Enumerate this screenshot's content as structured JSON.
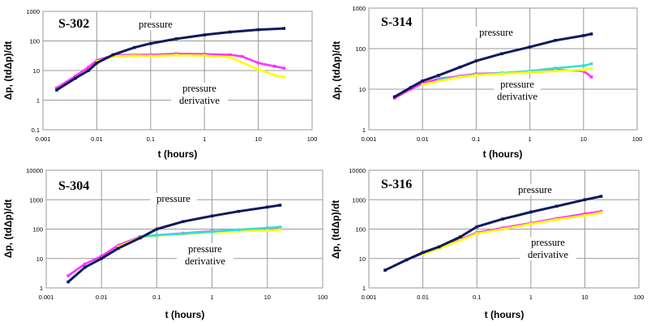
{
  "colors": {
    "pressure": "#0d1a5c",
    "derivative_a": "#ff33ff",
    "derivative_b": "#ffff00",
    "derivative_c": "#33dddd",
    "grid": "#9a9a9a"
  },
  "chart_data": [
    {
      "type": "scatter",
      "title": "S-302",
      "xlabel": "t (hours)",
      "ylabel": "Δp, (tdΔp)/dt",
      "x_scale": "log",
      "y_scale": "log",
      "xlim": [
        0.001,
        100
      ],
      "ylim": [
        0.1,
        1000
      ],
      "x_ticks": [
        "0.001",
        "0.01",
        "0.1",
        "1",
        "10",
        "100"
      ],
      "y_ticks": [
        "0.1",
        "1",
        "10",
        "100",
        "1000"
      ],
      "annotations": [
        "pressure",
        "pressure",
        "derivative"
      ],
      "series": [
        {
          "color": "pressure",
          "points": [
            [
              0.0018,
              2.2
            ],
            [
              0.004,
              5.5
            ],
            [
              0.007,
              10
            ],
            [
              0.01,
              18
            ],
            [
              0.02,
              34
            ],
            [
              0.05,
              60
            ],
            [
              0.1,
              82
            ],
            [
              0.3,
              118
            ],
            [
              1,
              160
            ],
            [
              3,
              200
            ],
            [
              10,
              240
            ],
            [
              30,
              265
            ]
          ]
        },
        {
          "color": "derivative_a",
          "points": [
            [
              0.0018,
              2.6
            ],
            [
              0.004,
              6.5
            ],
            [
              0.007,
              13
            ],
            [
              0.01,
              22
            ],
            [
              0.02,
              33
            ],
            [
              0.05,
              34
            ],
            [
              0.1,
              34
            ],
            [
              0.3,
              37
            ],
            [
              1,
              36
            ],
            [
              3,
              34
            ],
            [
              5,
              30
            ],
            [
              10,
              18
            ],
            [
              20,
              14
            ],
            [
              30,
              12
            ]
          ]
        },
        {
          "color": "derivative_b",
          "points": [
            [
              0.01,
              20
            ],
            [
              0.02,
              30
            ],
            [
              0.05,
              32
            ],
            [
              0.1,
              31
            ],
            [
              0.3,
              33
            ],
            [
              1,
              32
            ],
            [
              3,
              28
            ],
            [
              10,
              11
            ],
            [
              20,
              7
            ],
            [
              30,
              6
            ]
          ]
        }
      ]
    },
    {
      "type": "scatter",
      "title": "S-314",
      "xlabel": "t (hours)",
      "ylabel": "Δp, (tdΔp)/dt",
      "x_scale": "log",
      "y_scale": "log",
      "xlim": [
        0.001,
        100
      ],
      "ylim": [
        1,
        1000
      ],
      "x_ticks": [
        "0.001",
        "0.01",
        "0.1",
        "1",
        "10",
        "100"
      ],
      "y_ticks": [
        "1",
        "10",
        "100",
        "1000"
      ],
      "annotations": [
        "pressure",
        "pressure",
        "derivative"
      ],
      "series": [
        {
          "color": "pressure",
          "points": [
            [
              0.003,
              6.5
            ],
            [
              0.006,
              11
            ],
            [
              0.01,
              16
            ],
            [
              0.02,
              22
            ],
            [
              0.05,
              35
            ],
            [
              0.1,
              50
            ],
            [
              0.3,
              75
            ],
            [
              1,
              110
            ],
            [
              3,
              160
            ],
            [
              10,
              210
            ],
            [
              14,
              230
            ]
          ]
        },
        {
          "color": "derivative_a",
          "points": [
            [
              0.003,
              6
            ],
            [
              0.006,
              10
            ],
            [
              0.01,
              14
            ],
            [
              0.02,
              18
            ],
            [
              0.05,
              21
            ],
            [
              0.1,
              24
            ],
            [
              0.3,
              25
            ],
            [
              1,
              27
            ],
            [
              3,
              30
            ],
            [
              10,
              28
            ],
            [
              14,
              20
            ]
          ]
        },
        {
          "color": "derivative_c",
          "points": [
            [
              0.02,
              17
            ],
            [
              0.05,
              20
            ],
            [
              0.1,
              23
            ],
            [
              0.3,
              25
            ],
            [
              1,
              28
            ],
            [
              3,
              33
            ],
            [
              10,
              38
            ],
            [
              14,
              42
            ]
          ]
        },
        {
          "color": "derivative_b",
          "points": [
            [
              0.01,
              13
            ],
            [
              0.05,
              20
            ],
            [
              0.1,
              22
            ],
            [
              0.3,
              24
            ],
            [
              1,
              26
            ],
            [
              3,
              28
            ],
            [
              10,
              30
            ],
            [
              14,
              32
            ]
          ]
        }
      ]
    },
    {
      "type": "scatter",
      "title": "S-304",
      "xlabel": "t (hours)",
      "ylabel": "Δp, (tdΔp)/dt",
      "x_scale": "log",
      "y_scale": "log",
      "xlim": [
        0.001,
        100
      ],
      "ylim": [
        1,
        10000
      ],
      "x_ticks": [
        "0.001",
        "0.01",
        "0.1",
        "1",
        "10",
        "100"
      ],
      "y_ticks": [
        "1",
        "10",
        "100",
        "1000",
        "10000"
      ],
      "annotations": [
        "pressure",
        "pressure",
        "derivative"
      ],
      "series": [
        {
          "color": "pressure",
          "points": [
            [
              0.0025,
              1.6
            ],
            [
              0.005,
              5
            ],
            [
              0.01,
              10
            ],
            [
              0.02,
              22
            ],
            [
              0.05,
              50
            ],
            [
              0.1,
              100
            ],
            [
              0.3,
              180
            ],
            [
              1,
              280
            ],
            [
              3,
              400
            ],
            [
              10,
              560
            ],
            [
              17,
              650
            ]
          ]
        },
        {
          "color": "derivative_a",
          "points": [
            [
              0.0025,
              2.6
            ],
            [
              0.005,
              6.5
            ],
            [
              0.01,
              12
            ],
            [
              0.02,
              28
            ],
            [
              0.05,
              55
            ],
            [
              0.1,
              62
            ],
            [
              0.3,
              72
            ],
            [
              1,
              85
            ],
            [
              3,
              92
            ],
            [
              10,
              95
            ],
            [
              17,
              100
            ]
          ]
        },
        {
          "color": "derivative_b",
          "points": [
            [
              0.02,
              25
            ],
            [
              0.05,
              52
            ],
            [
              0.1,
              60
            ],
            [
              0.3,
              68
            ],
            [
              1,
              78
            ],
            [
              3,
              85
            ],
            [
              10,
              90
            ],
            [
              17,
              95
            ]
          ]
        },
        {
          "color": "derivative_c",
          "points": [
            [
              0.05,
              56
            ],
            [
              0.1,
              62
            ],
            [
              0.3,
              70
            ],
            [
              1,
              82
            ],
            [
              3,
              95
            ],
            [
              10,
              110
            ],
            [
              17,
              118
            ]
          ]
        }
      ]
    },
    {
      "type": "scatter",
      "title": "S-316",
      "xlabel": "t (hours)",
      "ylabel": "Δp, (tdΔp)/dt",
      "x_scale": "log",
      "y_scale": "log",
      "xlim": [
        0.001,
        100
      ],
      "ylim": [
        1,
        10000
      ],
      "x_ticks": [
        "0.001",
        "0.01",
        "0.1",
        "1",
        "10",
        "100"
      ],
      "y_ticks": [
        "1",
        "10",
        "100",
        "1000",
        "10000"
      ],
      "annotations": [
        "pressure",
        "pressure",
        "derivative"
      ],
      "series": [
        {
          "color": "pressure",
          "points": [
            [
              0.002,
              4
            ],
            [
              0.005,
              9
            ],
            [
              0.01,
              16
            ],
            [
              0.02,
              25
            ],
            [
              0.05,
              55
            ],
            [
              0.1,
              120
            ],
            [
              0.3,
              220
            ],
            [
              1,
              380
            ],
            [
              3,
              600
            ],
            [
              10,
              1000
            ],
            [
              20,
              1300
            ]
          ]
        },
        {
          "color": "derivative_a",
          "points": [
            [
              0.002,
              4
            ],
            [
              0.005,
              9
            ],
            [
              0.01,
              15
            ],
            [
              0.02,
              24
            ],
            [
              0.05,
              45
            ],
            [
              0.1,
              75
            ],
            [
              0.3,
              110
            ],
            [
              1,
              160
            ],
            [
              3,
              230
            ],
            [
              10,
              330
            ],
            [
              20,
              400
            ]
          ]
        },
        {
          "color": "derivative_b",
          "points": [
            [
              0.01,
              14
            ],
            [
              0.02,
              22
            ],
            [
              0.05,
              42
            ],
            [
              0.1,
              70
            ],
            [
              0.3,
              100
            ],
            [
              1,
              150
            ],
            [
              3,
              210
            ],
            [
              10,
              290
            ],
            [
              20,
              360
            ]
          ]
        }
      ]
    }
  ]
}
